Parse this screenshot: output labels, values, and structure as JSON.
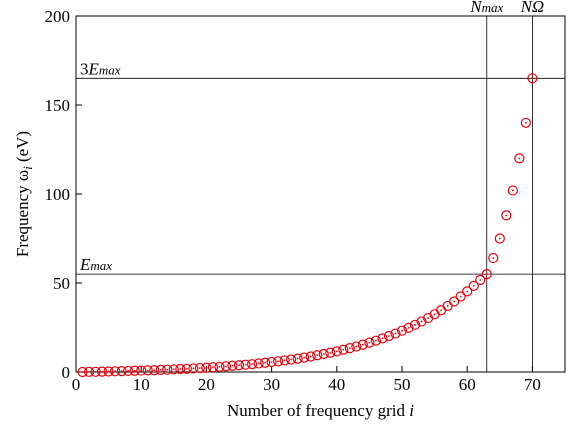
{
  "chart_data": {
    "type": "scatter",
    "xlabel": [
      {
        "text": "Number of frequency grid "
      },
      {
        "text": "i",
        "italic": true
      }
    ],
    "ylabel": [
      {
        "text": "Frequency ω"
      },
      {
        "text": "i",
        "italic": true,
        "sub": true
      },
      {
        "text": " (eV)"
      }
    ],
    "xlim": [
      0,
      75
    ],
    "ylim": [
      0,
      200
    ],
    "xticks": [
      0,
      10,
      20,
      30,
      40,
      50,
      60,
      70
    ],
    "yticks": [
      0,
      50,
      100,
      150,
      200
    ],
    "series": [
      {
        "color": "#e8000b",
        "x": [
          1,
          2,
          3,
          4,
          5,
          6,
          7,
          8,
          9,
          10,
          11,
          12,
          13,
          14,
          15,
          16,
          17,
          18,
          19,
          20,
          21,
          22,
          23,
          24,
          25,
          26,
          27,
          28,
          29,
          30,
          31,
          32,
          33,
          34,
          35,
          36,
          37,
          38,
          39,
          40,
          41,
          42,
          43,
          44,
          45,
          46,
          47,
          48,
          49,
          50,
          51,
          52,
          53,
          54,
          55,
          56,
          57,
          58,
          59,
          60,
          61,
          62,
          63,
          64,
          65,
          66,
          67,
          68,
          69,
          70
        ],
        "values": [
          0,
          0.1,
          0.1,
          0.2,
          0.3,
          0.4,
          0.5,
          0.6,
          0.7,
          0.8,
          0.9,
          1.0,
          1.2,
          1.3,
          1.5,
          1.7,
          1.8,
          2.0,
          2.2,
          2.4,
          2.7,
          2.9,
          3.2,
          3.5,
          3.8,
          4.1,
          4.4,
          4.8,
          5.2,
          5.6,
          6.0,
          6.5,
          7.0,
          7.5,
          8.1,
          8.7,
          9.4,
          10.1,
          10.8,
          11.6,
          12.5,
          13.4,
          14.3,
          15.4,
          16.5,
          17.6,
          18.9,
          20.2,
          21.6,
          23.2,
          24.8,
          26.5,
          28.4,
          30.3,
          32.4,
          34.7,
          37.1,
          39.6,
          42.4,
          45.3,
          48.4,
          51.7,
          55,
          64,
          75,
          88,
          102,
          120,
          140,
          165
        ]
      }
    ],
    "hlines": [
      {
        "value": 55,
        "label": "E",
        "sub": "max"
      },
      {
        "value": 165,
        "prefix": "3",
        "label": "E",
        "sub": "max"
      }
    ],
    "vlines": [
      {
        "value": 63,
        "label": "N",
        "sub": "max"
      },
      {
        "value": 70,
        "label": "NΩ"
      }
    ]
  }
}
